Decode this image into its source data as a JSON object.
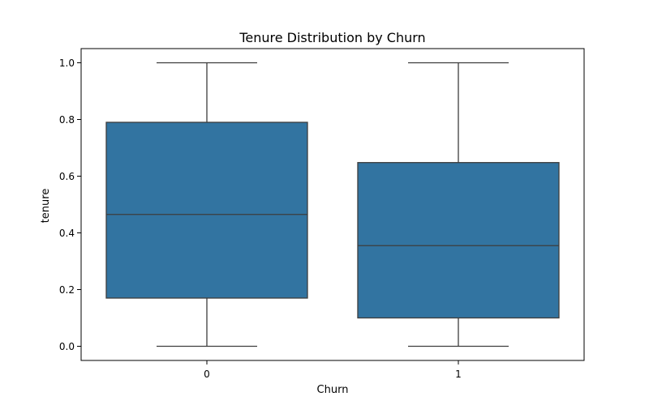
{
  "chart_data": {
    "type": "box",
    "title": "Tenure Distribution by Churn",
    "xlabel": "Churn",
    "ylabel": "tenure",
    "ylim": [
      -0.05,
      1.05
    ],
    "yticks": [
      0.0,
      0.2,
      0.4,
      0.6,
      0.8,
      1.0
    ],
    "ytick_labels": [
      "0.0",
      "0.2",
      "0.4",
      "0.6",
      "0.8",
      "1.0"
    ],
    "categories": [
      "0",
      "1"
    ],
    "boxes": [
      {
        "category": "0",
        "whisker_low": 0.0,
        "q1": 0.17,
        "median": 0.465,
        "q3": 0.79,
        "whisker_high": 1.0
      },
      {
        "category": "1",
        "whisker_low": 0.0,
        "q1": 0.1,
        "median": 0.355,
        "q3": 0.648,
        "whisker_high": 1.0
      }
    ],
    "grid": false,
    "box_color": "#3274a1",
    "line_color": "#3d3d3d"
  }
}
